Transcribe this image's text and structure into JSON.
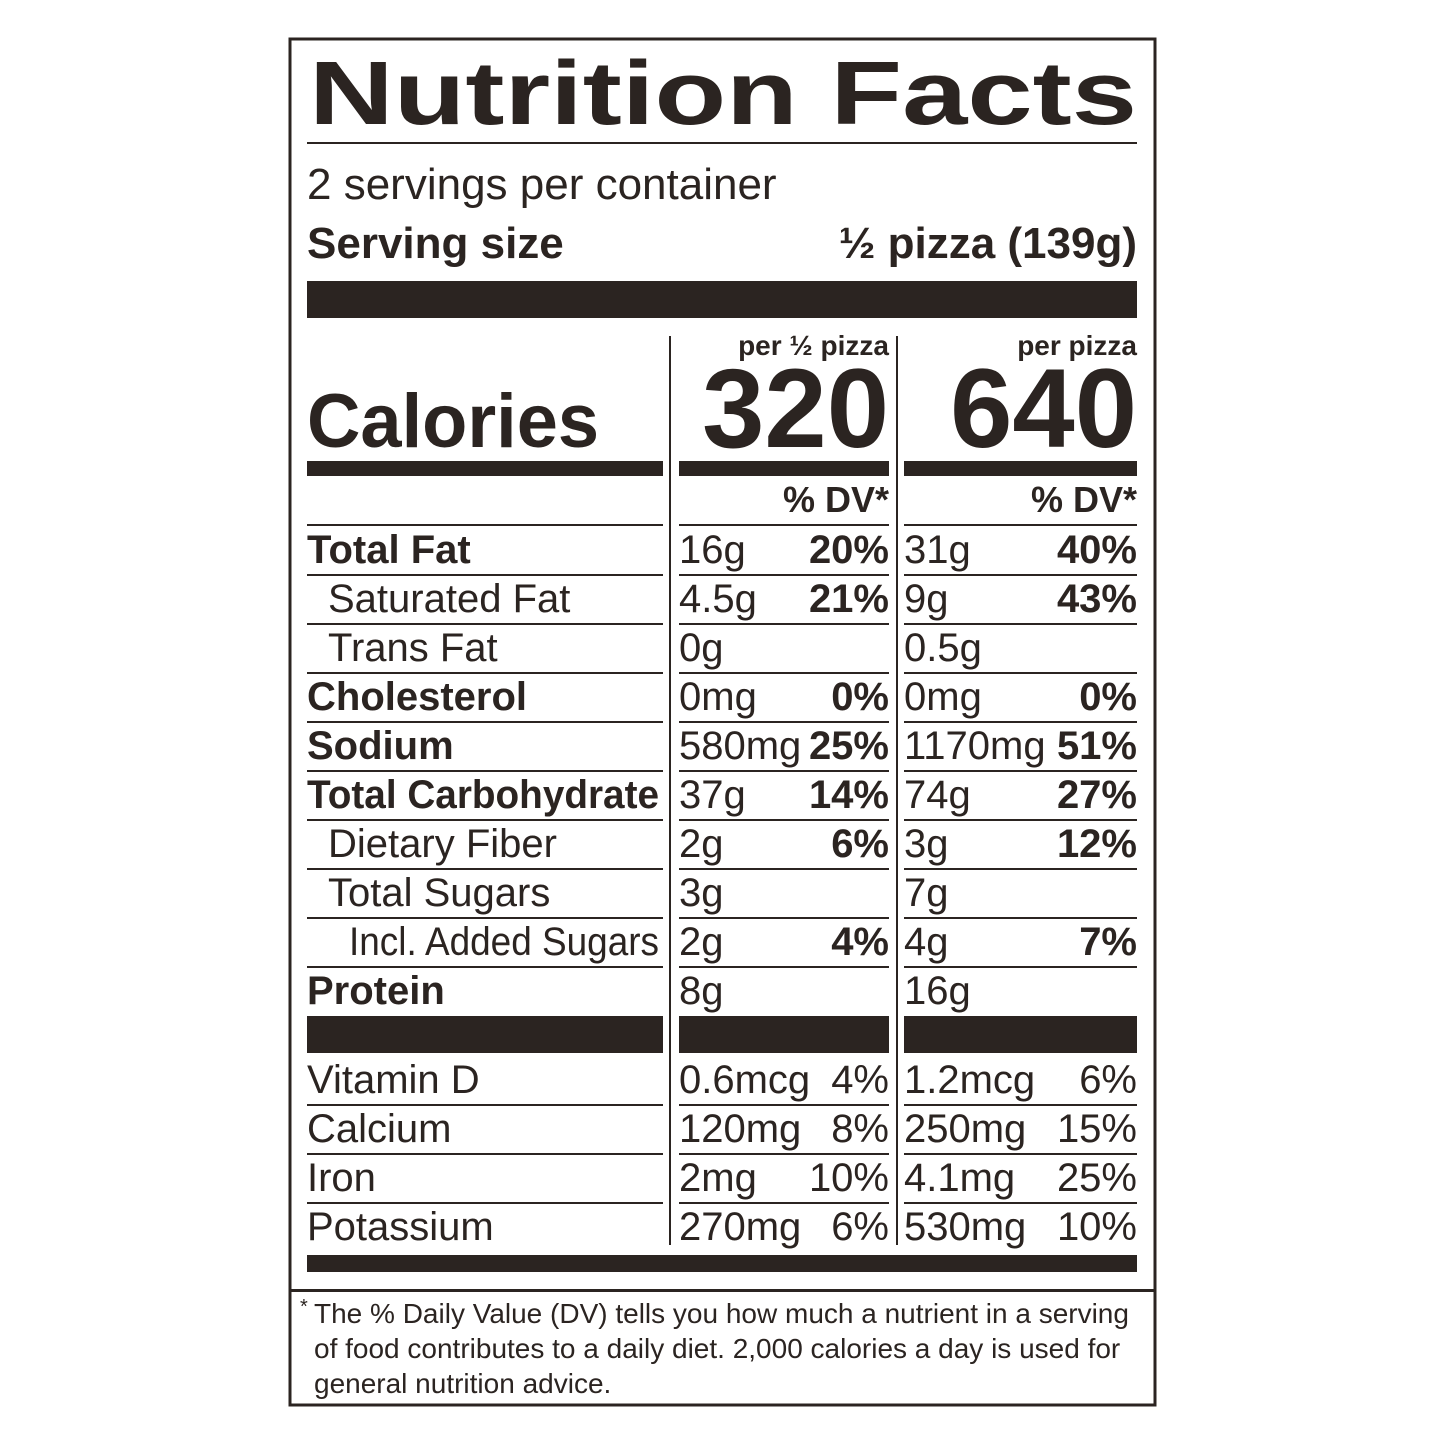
{
  "title": "Nutrition Facts",
  "servings_per_container": "2 servings per container",
  "serving_size": {
    "label": "Serving size",
    "value": "½ pizza (139g)"
  },
  "calories_label": "Calories",
  "columns": [
    {
      "header": "per ½ pizza",
      "calories": "320",
      "dv_header": "% DV*"
    },
    {
      "header": "per pizza",
      "calories": "640",
      "dv_header": "% DV*"
    }
  ],
  "nutrients": [
    {
      "name": "Total Fat",
      "cells": [
        {
          "amount": "16g",
          "dv": "20%"
        },
        {
          "amount": "31g",
          "dv": "40%"
        }
      ]
    },
    {
      "name": "Saturated Fat",
      "cells": [
        {
          "amount": "4.5g",
          "dv": "21%"
        },
        {
          "amount": "9g",
          "dv": "43%"
        }
      ]
    },
    {
      "name": "Trans Fat",
      "cells": [
        {
          "amount": "0g"
        },
        {
          "amount": "0.5g"
        }
      ]
    },
    {
      "name": "Cholesterol",
      "cells": [
        {
          "amount": "0mg",
          "dv": "0%"
        },
        {
          "amount": "0mg",
          "dv": "0%"
        }
      ]
    },
    {
      "name": "Sodium",
      "cells": [
        {
          "amount": "580mg",
          "dv": "25%"
        },
        {
          "amount": "1170mg",
          "dv": "51%"
        }
      ]
    },
    {
      "name": "Total Carbohydrate",
      "cells": [
        {
          "amount": "37g",
          "dv": "14%"
        },
        {
          "amount": "74g",
          "dv": "27%"
        }
      ]
    },
    {
      "name": "Dietary Fiber",
      "cells": [
        {
          "amount": "2g",
          "dv": "6%"
        },
        {
          "amount": "3g",
          "dv": "12%"
        }
      ]
    },
    {
      "name": "Total Sugars",
      "cells": [
        {
          "amount": "3g"
        },
        {
          "amount": "7g"
        }
      ]
    },
    {
      "name": "Incl. Added Sugars",
      "cells": [
        {
          "amount": "2g",
          "dv": "4%"
        },
        {
          "amount": "4g",
          "dv": "7%"
        }
      ]
    },
    {
      "name": "Protein",
      "cells": [
        {
          "amount": "8g"
        },
        {
          "amount": "16g"
        }
      ]
    }
  ],
  "vitamins": [
    {
      "name": "Vitamin D",
      "cells": [
        {
          "amount": "0.6mcg",
          "dv": "4%"
        },
        {
          "amount": "1.2mcg",
          "dv": "6%"
        }
      ]
    },
    {
      "name": "Calcium",
      "cells": [
        {
          "amount": "120mg",
          "dv": "8%"
        },
        {
          "amount": "250mg",
          "dv": "15%"
        }
      ]
    },
    {
      "name": "Iron",
      "cells": [
        {
          "amount": "2mg",
          "dv": "10%"
        },
        {
          "amount": "4.1mg",
          "dv": "25%"
        }
      ]
    },
    {
      "name": "Potassium",
      "cells": [
        {
          "amount": "270mg",
          "dv": "6%"
        },
        {
          "amount": "530mg",
          "dv": "10%"
        }
      ]
    }
  ],
  "footnote": {
    "mark": "*",
    "text": "The % Daily Value (DV) tells you how much a nutrient in a serving of food contributes to a daily diet. 2,000 calories a day is used for general nutrition advice."
  }
}
